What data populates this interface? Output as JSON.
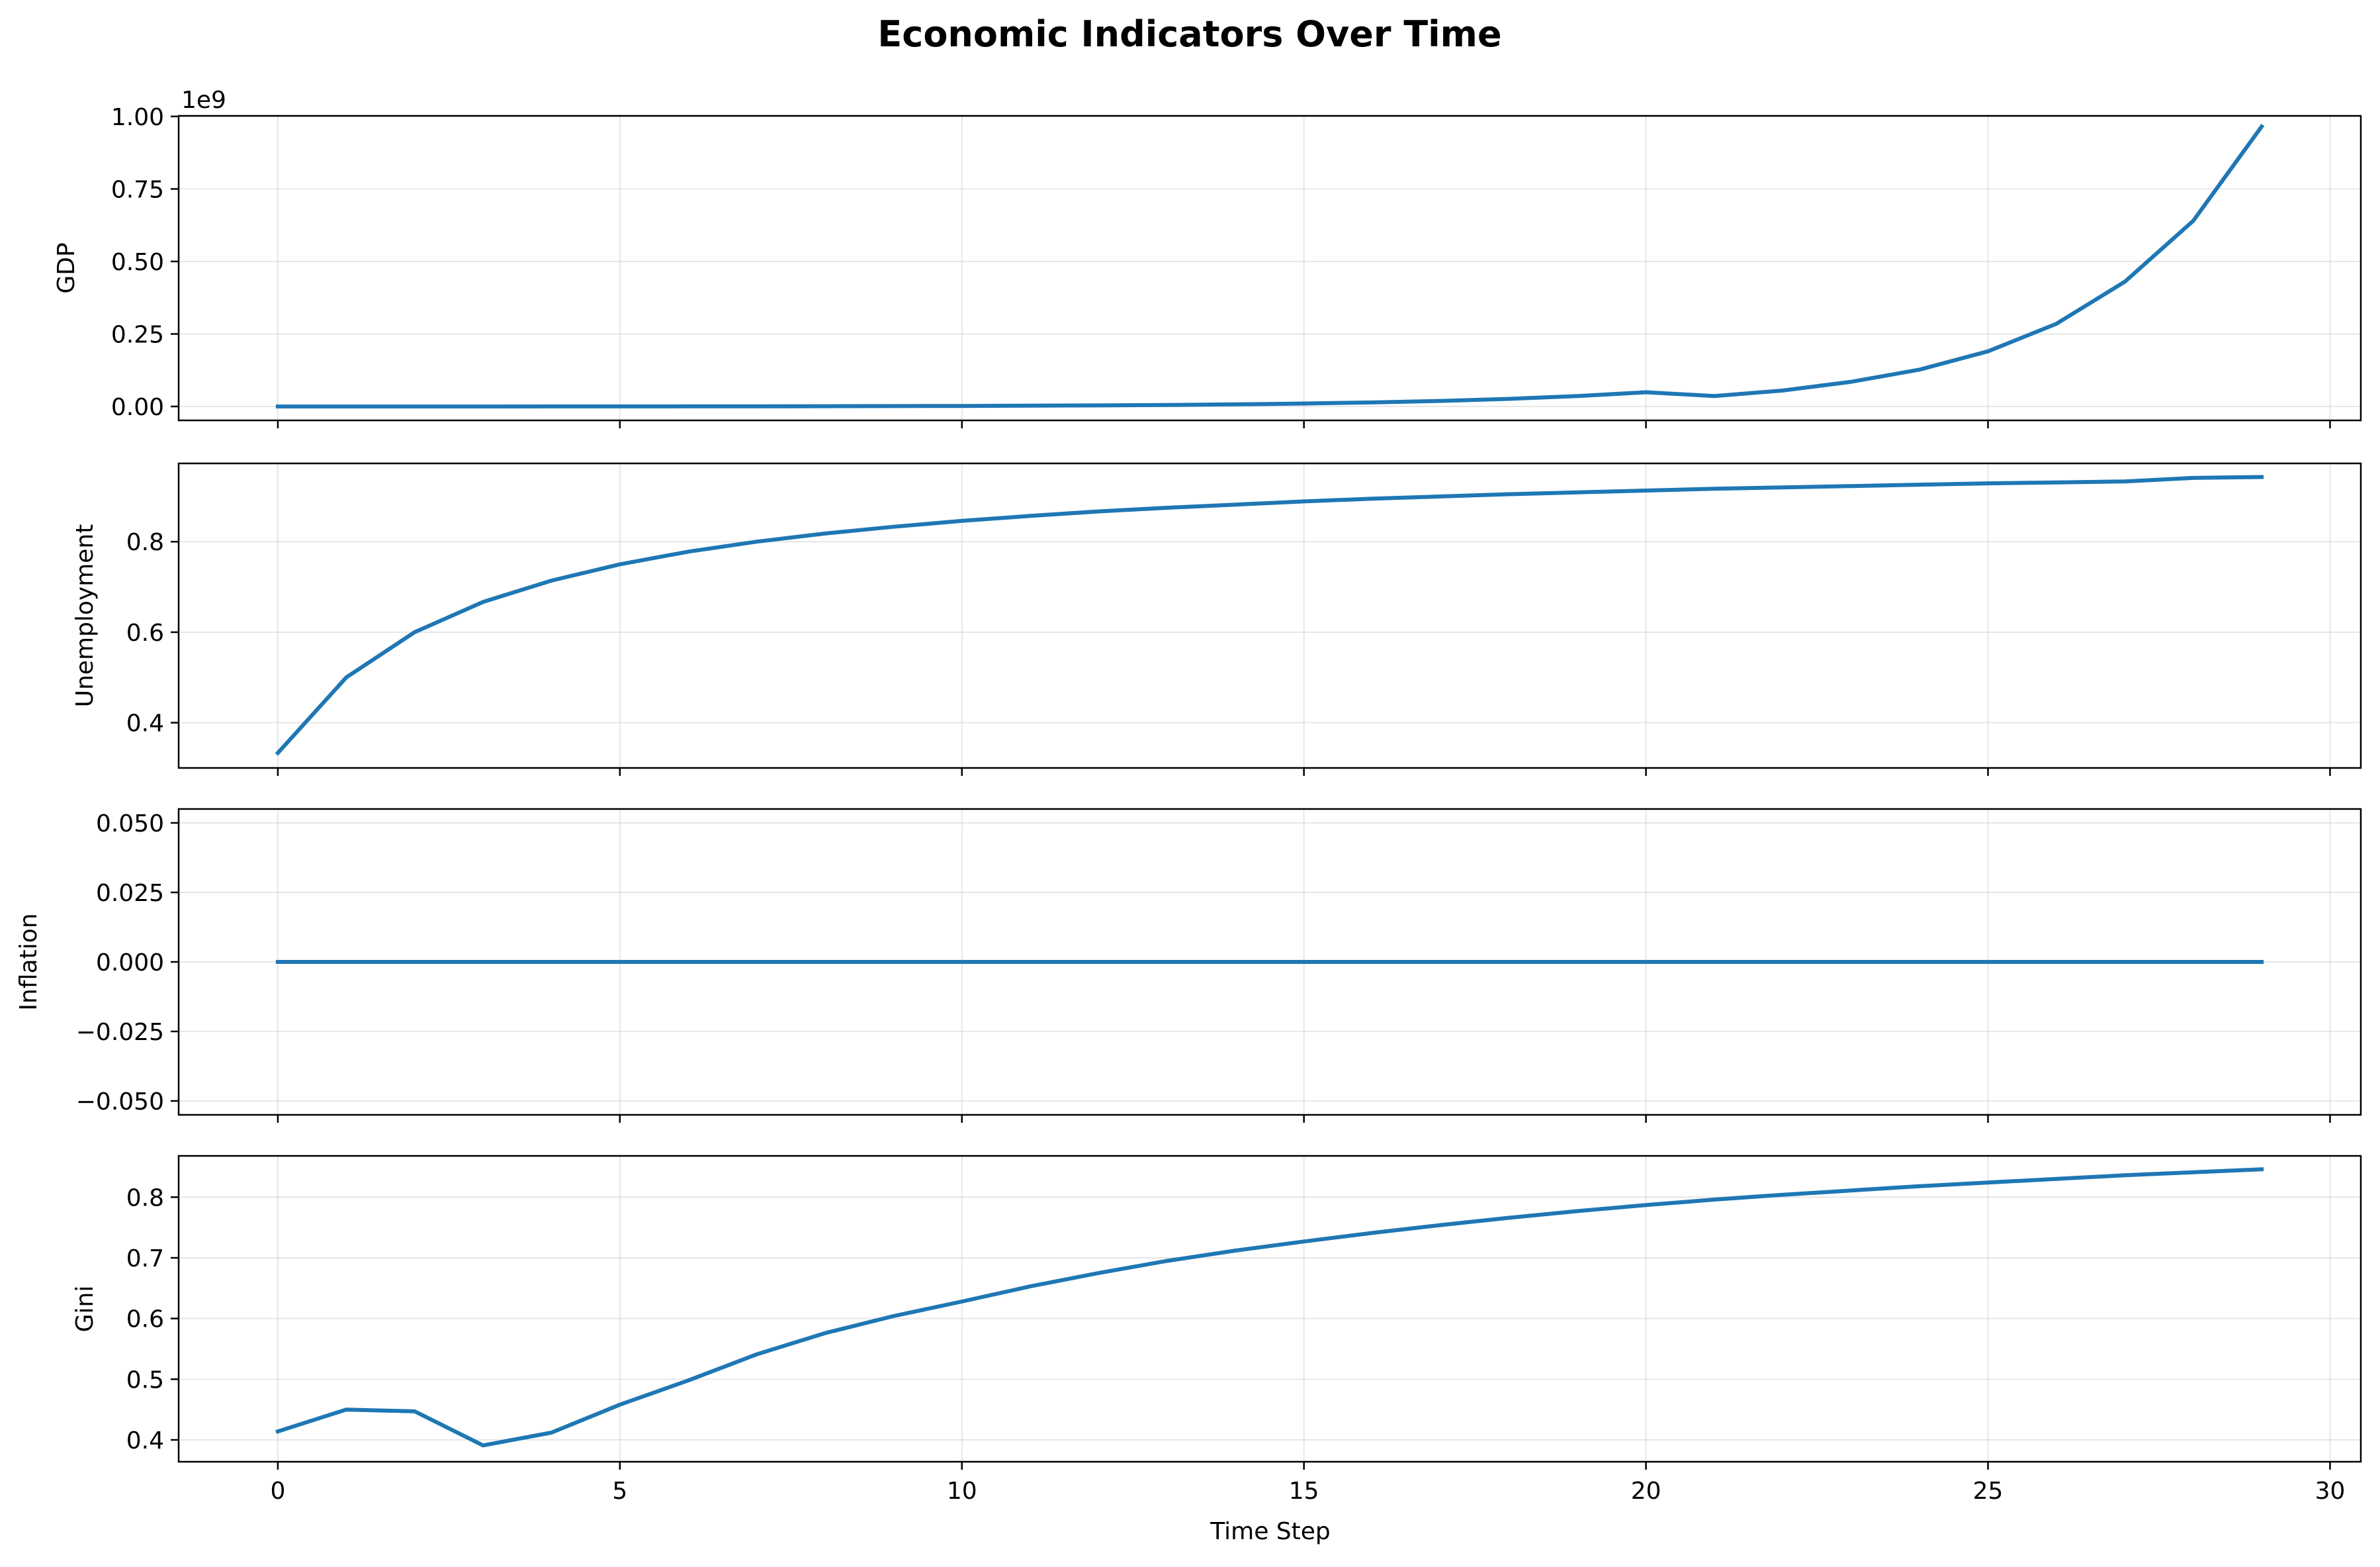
{
  "chart_data": {
    "type": "line",
    "title": "Economic Indicators Over Time",
    "xlabel": "Time Step",
    "xlim": [
      -1.45,
      30.45
    ],
    "xticks": [
      0,
      5,
      10,
      15,
      20,
      25,
      30
    ],
    "x": [
      0,
      1,
      2,
      3,
      4,
      5,
      6,
      7,
      8,
      9,
      10,
      11,
      12,
      13,
      14,
      15,
      16,
      17,
      18,
      19,
      20,
      21,
      22,
      23,
      24,
      25,
      26,
      27,
      28,
      29
    ],
    "grid": true,
    "line_color": "#1f77b4",
    "panels": [
      {
        "ylabel": "GDP",
        "offset_text": "1e9",
        "ylim": [
          -0.048,
          1.002
        ],
        "yticks": [
          0,
          0.25,
          0.5,
          0.75,
          1.0
        ],
        "ytick_labels": [
          "0.00",
          "0.25",
          "0.50",
          "0.75",
          "1.00"
        ],
        "values": [
          0.0,
          0.0,
          0.0,
          0.0,
          0.0001,
          0.0002,
          0.0003,
          0.0005,
          0.0008,
          0.0012,
          0.0018,
          0.0026,
          0.0037,
          0.0052,
          0.0073,
          0.0101,
          0.0139,
          0.0191,
          0.0262,
          0.0358,
          0.049,
          0.036,
          0.055,
          0.085,
          0.127,
          0.19,
          0.285,
          0.43,
          0.64,
          0.965
        ]
      },
      {
        "ylabel": "Unemployment",
        "ylim": [
          0.3,
          0.973
        ],
        "yticks": [
          0.4,
          0.6,
          0.8
        ],
        "ytick_labels": [
          "0.4",
          "0.6",
          "0.8"
        ],
        "values": [
          0.333,
          0.5,
          0.6,
          0.667,
          0.714,
          0.75,
          0.778,
          0.8,
          0.818,
          0.833,
          0.846,
          0.857,
          0.867,
          0.875,
          0.882,
          0.889,
          0.895,
          0.9,
          0.905,
          0.909,
          0.913,
          0.917,
          0.92,
          0.923,
          0.926,
          0.929,
          0.931,
          0.933,
          0.941,
          0.943
        ]
      },
      {
        "ylabel": "Inflation",
        "ylim": [
          -0.055,
          0.055
        ],
        "yticks": [
          -0.05,
          -0.025,
          0,
          0.025,
          0.05
        ],
        "ytick_labels": [
          "−0.050",
          "−0.025",
          "0.000",
          "0.025",
          "0.050"
        ],
        "values": [
          0,
          0,
          0,
          0,
          0,
          0,
          0,
          0,
          0,
          0,
          0,
          0,
          0,
          0,
          0,
          0,
          0,
          0,
          0,
          0,
          0,
          0,
          0,
          0,
          0,
          0,
          0,
          0,
          0,
          0
        ]
      },
      {
        "ylabel": "Gini",
        "ylim": [
          0.364,
          0.868
        ],
        "yticks": [
          0.4,
          0.5,
          0.6,
          0.7,
          0.8
        ],
        "ytick_labels": [
          "0.4",
          "0.5",
          "0.6",
          "0.7",
          "0.8"
        ],
        "values": [
          0.414,
          0.45,
          0.447,
          0.391,
          0.412,
          0.458,
          0.498,
          0.541,
          0.576,
          0.604,
          0.628,
          0.653,
          0.675,
          0.695,
          0.712,
          0.727,
          0.741,
          0.754,
          0.766,
          0.777,
          0.787,
          0.796,
          0.804,
          0.811,
          0.818,
          0.824,
          0.83,
          0.836,
          0.841,
          0.846
        ]
      }
    ]
  }
}
